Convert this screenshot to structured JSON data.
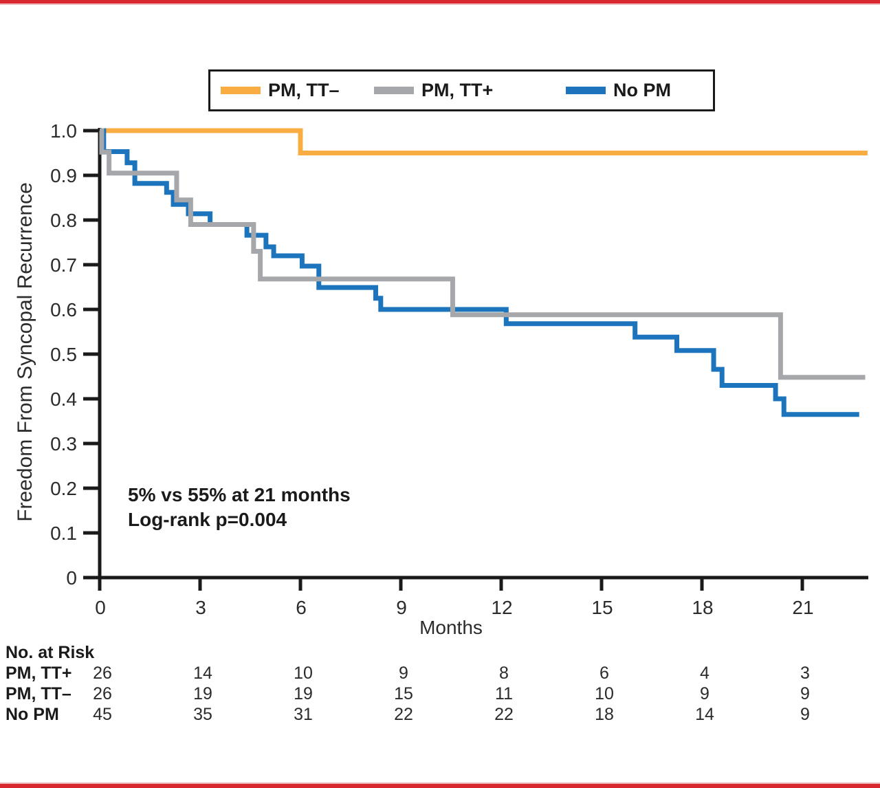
{
  "page": {
    "accent_border_color": "#D8272E",
    "accent_border_light": "#EFB6B8",
    "axis_color": "#1A1A1A",
    "text_color": "#2B2B2B"
  },
  "legend": {
    "items": [
      {
        "label": "PM, TT–",
        "color": "#F9AC41"
      },
      {
        "label": "PM, TT+",
        "color": "#A5A7AA"
      },
      {
        "label": "No PM",
        "color": "#1C75BC"
      }
    ]
  },
  "chart_data": {
    "type": "line",
    "subtype": "kaplan-meier-step",
    "title": "",
    "xlabel": "Months",
    "ylabel": "Freedom From Syncopal Recurrence",
    "xlim": [
      0,
      22.95
    ],
    "ylim": [
      0,
      1.0
    ],
    "x_ticks": [
      0,
      3,
      6,
      9,
      12,
      15,
      18,
      21
    ],
    "y_ticks": [
      1.0,
      0.9,
      0.8,
      0.7,
      0.6,
      0.5,
      0.4,
      0.3,
      0.2,
      0.1,
      0
    ],
    "y_tick_labels": [
      "1.0",
      "0.9",
      "0.8",
      "0.7",
      "0.6",
      "0.5",
      "0.4",
      "0.3",
      "0.2",
      "0.1",
      "0"
    ],
    "grid": false,
    "legend_position": "top",
    "annotation": {
      "line1": "5% vs 55% at 21 months",
      "line2": "Log-rank p=0.004"
    },
    "series": [
      {
        "name": "PM, TT–",
        "color": "#F9AC41",
        "end_x": 22.95,
        "steps": [
          [
            0,
            1.0
          ],
          [
            6,
            0.95
          ]
        ]
      },
      {
        "name": "PM, TT+",
        "color": "#A5A7AA",
        "end_x": 22.88,
        "steps": [
          [
            0,
            1.0
          ],
          [
            0.06,
            0.952
          ],
          [
            0.28,
            0.905
          ],
          [
            2.3,
            0.845
          ],
          [
            2.72,
            0.79
          ],
          [
            4.6,
            0.73
          ],
          [
            4.8,
            0.668
          ],
          [
            10.55,
            0.588
          ],
          [
            20.35,
            0.448
          ]
        ]
      },
      {
        "name": "No PM",
        "color": "#1C75BC",
        "end_x": 22.7,
        "steps": [
          [
            0,
            1.0
          ],
          [
            0.12,
            0.953
          ],
          [
            0.82,
            0.928
          ],
          [
            1.05,
            0.882
          ],
          [
            2.0,
            0.862
          ],
          [
            2.2,
            0.835
          ],
          [
            2.65,
            0.814
          ],
          [
            3.3,
            0.79
          ],
          [
            4.4,
            0.766
          ],
          [
            4.97,
            0.74
          ],
          [
            5.2,
            0.72
          ],
          [
            6.05,
            0.697
          ],
          [
            6.55,
            0.649
          ],
          [
            8.25,
            0.625
          ],
          [
            8.4,
            0.6
          ],
          [
            12.15,
            0.568
          ],
          [
            16.0,
            0.538
          ],
          [
            17.25,
            0.508
          ],
          [
            18.35,
            0.466
          ],
          [
            18.6,
            0.43
          ],
          [
            20.2,
            0.4
          ],
          [
            20.45,
            0.365
          ]
        ]
      }
    ],
    "draw_order": [
      0,
      2,
      1
    ]
  },
  "risk_table": {
    "title": "No. at Risk",
    "time_points": [
      0,
      3,
      6,
      9,
      12,
      15,
      18,
      21
    ],
    "rows": [
      {
        "label": "PM, TT+",
        "counts": [
          26,
          14,
          10,
          9,
          8,
          6,
          4,
          3
        ]
      },
      {
        "label": "PM, TT–",
        "counts": [
          26,
          19,
          19,
          15,
          11,
          10,
          9,
          9
        ]
      },
      {
        "label": "No PM",
        "counts": [
          45,
          35,
          31,
          22,
          22,
          18,
          14,
          9
        ]
      }
    ]
  }
}
